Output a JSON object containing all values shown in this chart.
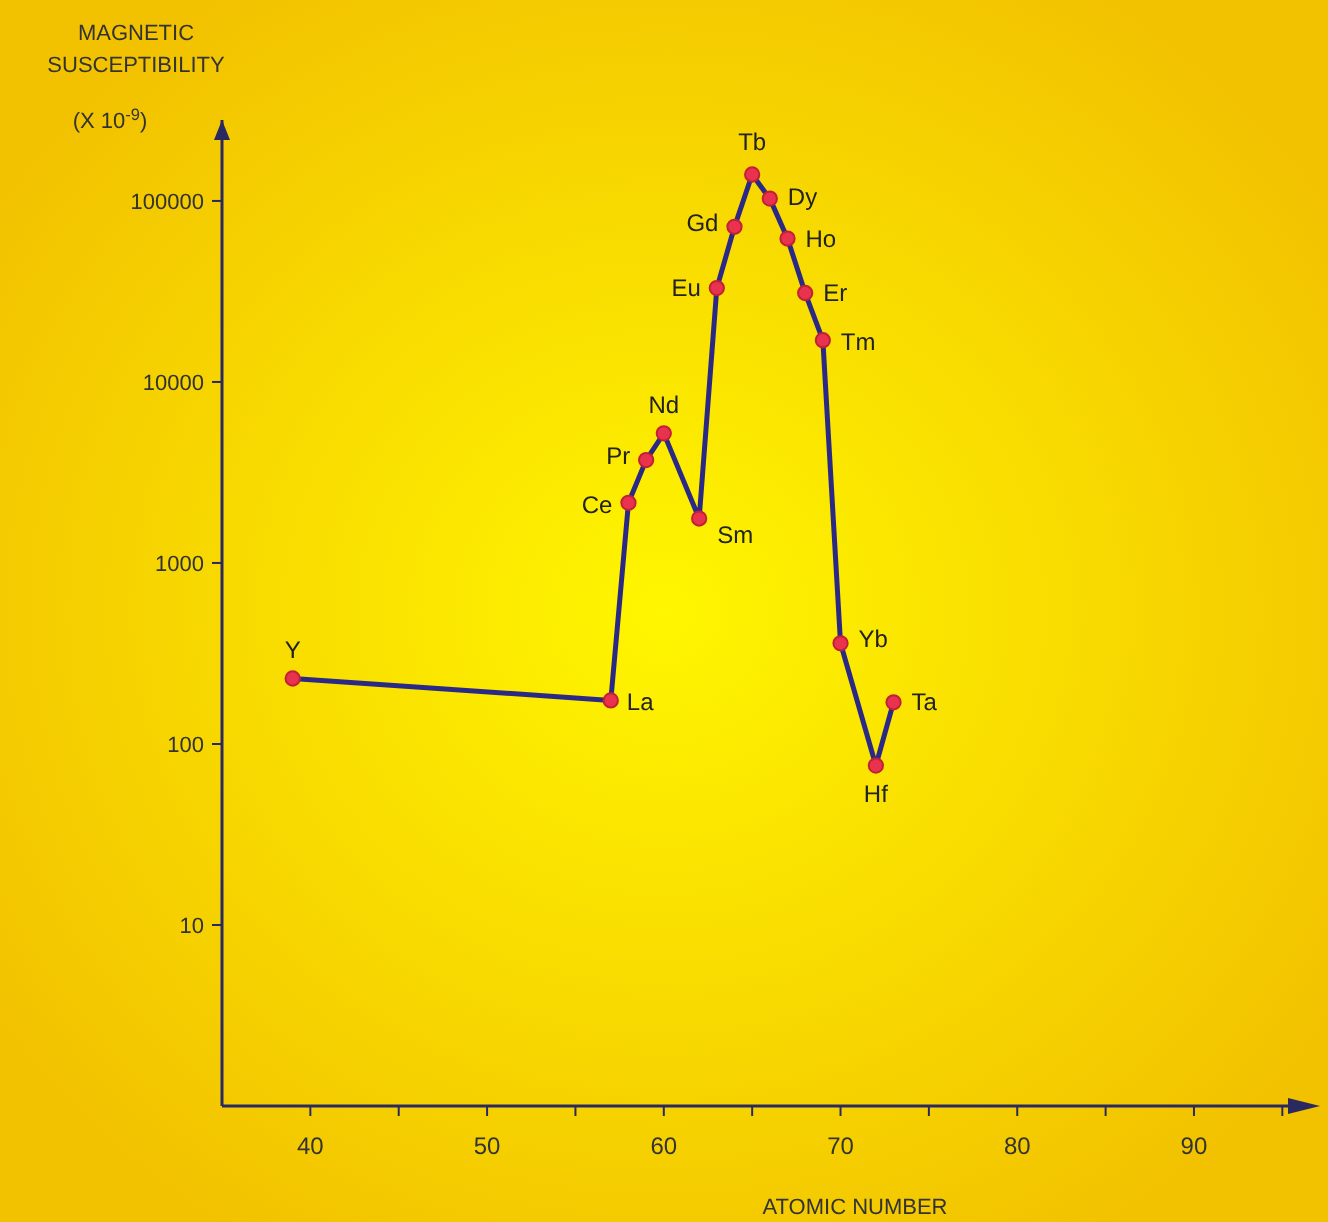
{
  "chart_data": {
    "type": "line",
    "xlabel": "ATOMIC NUMBER",
    "ylabel": "MAGNETIC SUSCEPTIBILITY (X 10$^{-9}$)",
    "log": "y",
    "xlim": [
      35,
      96
    ],
    "ylim": [
      1,
      280000
    ],
    "xticks": [
      40,
      {
        "value": 45,
        "label": null
      },
      50,
      {
        "value": 55,
        "label": null
      },
      60,
      {
        "value": 65,
        "label": null
      },
      70,
      {
        "value": 75,
        "label": null
      },
      80,
      {
        "value": 85,
        "label": null
      },
      90,
      {
        "value": 95,
        "label": null
      }
    ],
    "yticks": [
      10,
      100,
      1000,
      10000,
      100000
    ],
    "marker": "circle",
    "line_style": "solid",
    "series": [
      {
        "color": "#2a2a86",
        "x": [
          39,
          57,
          58,
          59,
          60,
          62,
          63,
          64,
          65,
          66,
          67,
          68,
          69,
          70,
          72,
          73
        ],
        "values": [
          230,
          174,
          2150,
          3700,
          5200,
          1760,
          33000,
          72000,
          140000,
          103000,
          62000,
          31000,
          17000,
          360,
          76,
          170
        ]
      }
    ],
    "annotations": [
      {
        "text": "Y",
        "x": 39,
        "y": 230
      },
      {
        "text": "La",
        "x": 57,
        "y": 174
      },
      {
        "text": "Ce",
        "x": 58,
        "y": 2150
      },
      {
        "text": "Pr",
        "x": 59,
        "y": 3700
      },
      {
        "text": "Nd",
        "x": 60,
        "y": 5200
      },
      {
        "text": "Sm",
        "x": 62,
        "y": 1760
      },
      {
        "text": "Eu",
        "x": 63,
        "y": 33000
      },
      {
        "text": "Gd",
        "x": 64,
        "y": 72000
      },
      {
        "text": "Tb",
        "x": 65,
        "y": 140000
      },
      {
        "text": "Dy",
        "x": 66,
        "y": 103000
      },
      {
        "text": "Ho",
        "x": 67,
        "y": 62000
      },
      {
        "text": "Er",
        "x": 68,
        "y": 31000
      },
      {
        "text": "Tm",
        "x": 69,
        "y": 17000
      },
      {
        "text": "Yb",
        "x": 70,
        "y": 360
      },
      {
        "text": "Hf",
        "x": 72,
        "y": 76
      },
      {
        "text": "Ta",
        "x": 73,
        "y": 170
      }
    ]
  }
}
